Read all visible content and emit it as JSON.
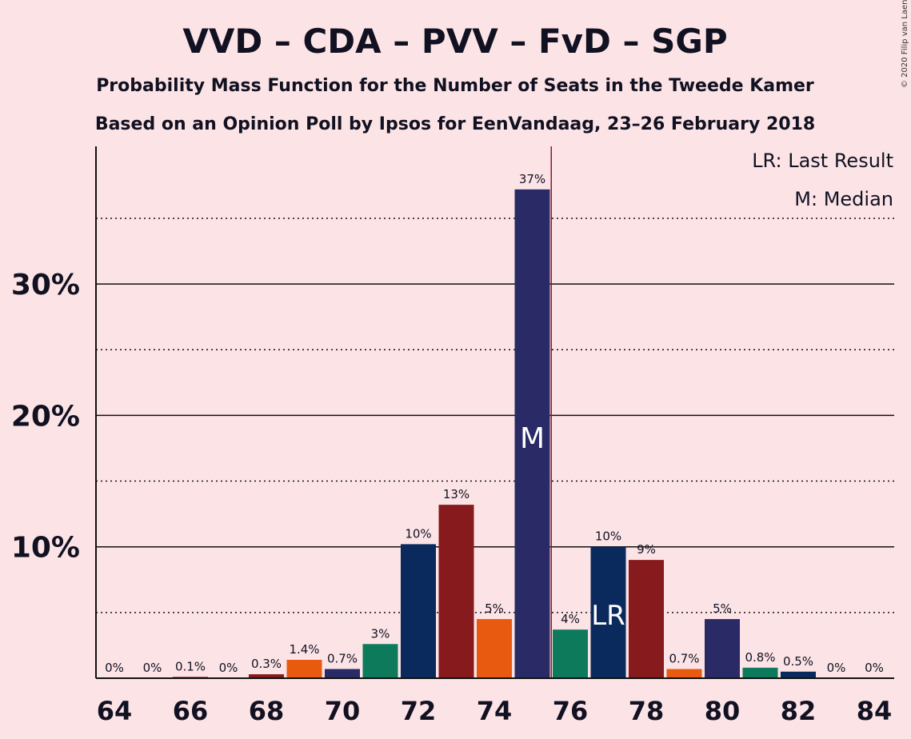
{
  "chart_data": {
    "type": "bar",
    "title": "VVD – CDA – PVV – FvD – SGP",
    "subtitle1": "Probability Mass Function for the Number of Seats in the Tweede Kamer",
    "subtitle2": "Based on an Opinion Poll by Ipsos for EenVandaag, 23–26 February 2018",
    "copyright": "© 2020 Filip van Laenen",
    "legend": {
      "lr": "LR: Last Result",
      "median": "M: Median"
    },
    "x": [
      64,
      65,
      66,
      67,
      68,
      69,
      70,
      71,
      72,
      73,
      74,
      75,
      76,
      77,
      78,
      79,
      80,
      81,
      82,
      83,
      84
    ],
    "values": [
      0,
      0,
      0.1,
      0,
      0.3,
      1.4,
      0.7,
      2.6,
      10.2,
      13.2,
      4.5,
      37.2,
      3.7,
      10.0,
      9.0,
      0.7,
      4.5,
      0.8,
      0.5,
      0,
      0
    ],
    "data_labels": [
      "0%",
      "0%",
      "0.1%",
      "0%",
      "0.3%",
      "1.4%",
      "0.7%",
      "3%",
      "10%",
      "13%",
      "5%",
      "37%",
      "4%",
      "10%",
      "9%",
      "0.7%",
      "5%",
      "0.8%",
      "0.5%",
      "0%",
      "0%"
    ],
    "bar_colors": [
      "#2a2a66",
      "#0a2a5e",
      "#861a1c",
      "#e85a10",
      "#861a1c",
      "#e85a10",
      "#2a2a66",
      "#0d7a5c",
      "#0a2a5e",
      "#861a1c",
      "#e85a10",
      "#2a2a66",
      "#0d7a5c",
      "#0a2a5e",
      "#861a1c",
      "#e85a10",
      "#2a2a66",
      "#0d7a5c",
      "#0a2a5e",
      "#861a1c",
      "#e85a10"
    ],
    "x_tick_labels": [
      "64",
      "66",
      "68",
      "70",
      "72",
      "74",
      "76",
      "78",
      "80",
      "82",
      "84"
    ],
    "y_ticks": [
      10,
      20,
      30
    ],
    "y_tick_labels": [
      "10%",
      "20%",
      "30%"
    ],
    "ylim": [
      0,
      40
    ],
    "median_seat": 75,
    "median_marker": "M",
    "last_result_seat": 77,
    "last_result_marker": "LR",
    "majority_line_after": 75,
    "majority_line_color": "#8b1a2a"
  }
}
